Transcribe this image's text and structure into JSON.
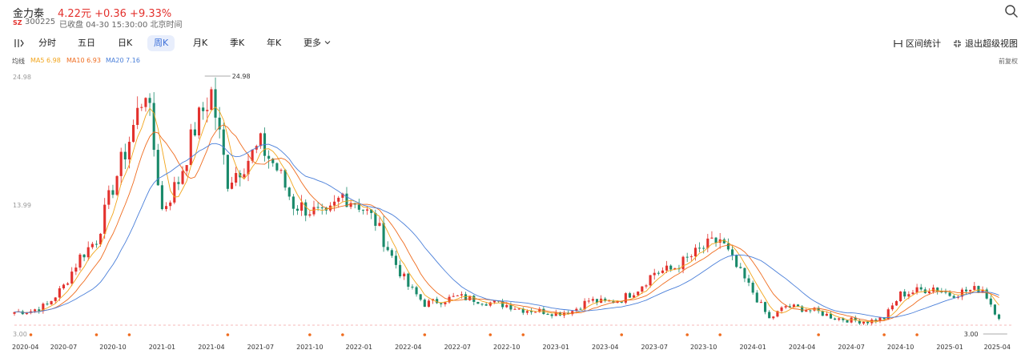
{
  "header": {
    "name": "金力泰",
    "price_line": "4.22元 +0.36 +9.33%",
    "exchange": "SZ",
    "code": "300225",
    "status": "已收盘 04-30 15:30:00 北京时间"
  },
  "toolbar": {
    "tabs": [
      {
        "label": "分时",
        "active": false
      },
      {
        "label": "五日",
        "active": false
      },
      {
        "label": "日K",
        "active": false
      },
      {
        "label": "周K",
        "active": true
      },
      {
        "label": "月K",
        "active": false
      },
      {
        "label": "季K",
        "active": false
      },
      {
        "label": "年K",
        "active": false
      },
      {
        "label": "更多",
        "active": false
      }
    ],
    "range_stats": "区间统计",
    "exit_fullscreen": "退出超级视图"
  },
  "legend": {
    "label": "均线",
    "ma5": "MA5 6.98",
    "ma10": "MA10 6.93",
    "ma20": "MA20 7.16",
    "adjust": "前复权"
  },
  "colors": {
    "up": "#e3312d",
    "down": "#1a8a6b",
    "ma5": "#f2a51c",
    "ma10": "#ef6c1f",
    "ma20": "#4a7fd9",
    "active_tab_bg": "#e8eefc"
  },
  "chart_data": {
    "type": "candlestick",
    "y_ticks": [
      "24.98",
      "13.99",
      "3.00"
    ],
    "ylim": [
      3.0,
      24.98
    ],
    "high_annotation": "24.98",
    "low_annotation": "3.00",
    "x_ticks": [
      "2020-04",
      "2020-07",
      "2020-10",
      "2021-01",
      "2021-04",
      "2021-07",
      "2021-10",
      "2022-01",
      "2022-04",
      "2022-07",
      "2022-10",
      "2023-01",
      "2023-04",
      "2023-07",
      "2023-10",
      "2024-01",
      "2024-04",
      "2024-07",
      "2024-10",
      "2025-01",
      "2025-04"
    ],
    "close_points": [
      {
        "date": "2020-04",
        "close": 4.8
      },
      {
        "date": "2020-05",
        "close": 4.9
      },
      {
        "date": "2020-06",
        "close": 5.4
      },
      {
        "date": "2020-07",
        "close": 7.0
      },
      {
        "date": "2020-08",
        "close": 9.5
      },
      {
        "date": "2020-09",
        "close": 11.0
      },
      {
        "date": "2020-10",
        "close": 15.5
      },
      {
        "date": "2020-11",
        "close": 19.5
      },
      {
        "date": "2020-12",
        "close": 24.0
      },
      {
        "date": "2021-01",
        "close": 13.5
      },
      {
        "date": "2021-02",
        "close": 16.0
      },
      {
        "date": "2021-03",
        "close": 20.5
      },
      {
        "date": "2021-04",
        "close": 23.5
      },
      {
        "date": "2021-05",
        "close": 16.0
      },
      {
        "date": "2021-06",
        "close": 17.5
      },
      {
        "date": "2021-07",
        "close": 19.0
      },
      {
        "date": "2021-08",
        "close": 17.0
      },
      {
        "date": "2021-09",
        "close": 14.0
      },
      {
        "date": "2021-10",
        "close": 13.5
      },
      {
        "date": "2021-11",
        "close": 12.8
      },
      {
        "date": "2021-12",
        "close": 14.8
      },
      {
        "date": "2022-01",
        "close": 14.0
      },
      {
        "date": "2022-02",
        "close": 12.5
      },
      {
        "date": "2022-03",
        "close": 9.5
      },
      {
        "date": "2022-04",
        "close": 7.0
      },
      {
        "date": "2022-05",
        "close": 5.5
      },
      {
        "date": "2022-06",
        "close": 5.8
      },
      {
        "date": "2022-07",
        "close": 6.1
      },
      {
        "date": "2022-08",
        "close": 5.9
      },
      {
        "date": "2022-09",
        "close": 5.6
      },
      {
        "date": "2022-10",
        "close": 5.4
      },
      {
        "date": "2022-11",
        "close": 5.0
      },
      {
        "date": "2022-12",
        "close": 4.9
      },
      {
        "date": "2023-01",
        "close": 4.7
      },
      {
        "date": "2023-02",
        "close": 4.9
      },
      {
        "date": "2023-03",
        "close": 5.8
      },
      {
        "date": "2023-04",
        "close": 5.6
      },
      {
        "date": "2023-05",
        "close": 5.9
      },
      {
        "date": "2023-06",
        "close": 6.8
      },
      {
        "date": "2023-07",
        "close": 8.2
      },
      {
        "date": "2023-08",
        "close": 8.4
      },
      {
        "date": "2023-09",
        "close": 9.3
      },
      {
        "date": "2023-10",
        "close": 10.3
      },
      {
        "date": "2023-11",
        "close": 11.0
      },
      {
        "date": "2023-12",
        "close": 8.6
      },
      {
        "date": "2024-01",
        "close": 6.5
      },
      {
        "date": "2024-02",
        "close": 4.2
      },
      {
        "date": "2024-03",
        "close": 5.3
      },
      {
        "date": "2024-04",
        "close": 5.1
      },
      {
        "date": "2024-05",
        "close": 4.8
      },
      {
        "date": "2024-06",
        "close": 4.3
      },
      {
        "date": "2024-07",
        "close": 4.1
      },
      {
        "date": "2024-08",
        "close": 4.0
      },
      {
        "date": "2024-09",
        "close": 4.3
      },
      {
        "date": "2024-10",
        "close": 6.3
      },
      {
        "date": "2024-11",
        "close": 6.6
      },
      {
        "date": "2024-12",
        "close": 6.9
      },
      {
        "date": "2025-01",
        "close": 6.3
      },
      {
        "date": "2025-02",
        "close": 6.6
      },
      {
        "date": "2025-03",
        "close": 6.8
      },
      {
        "date": "2025-04",
        "close": 4.22
      }
    ]
  }
}
